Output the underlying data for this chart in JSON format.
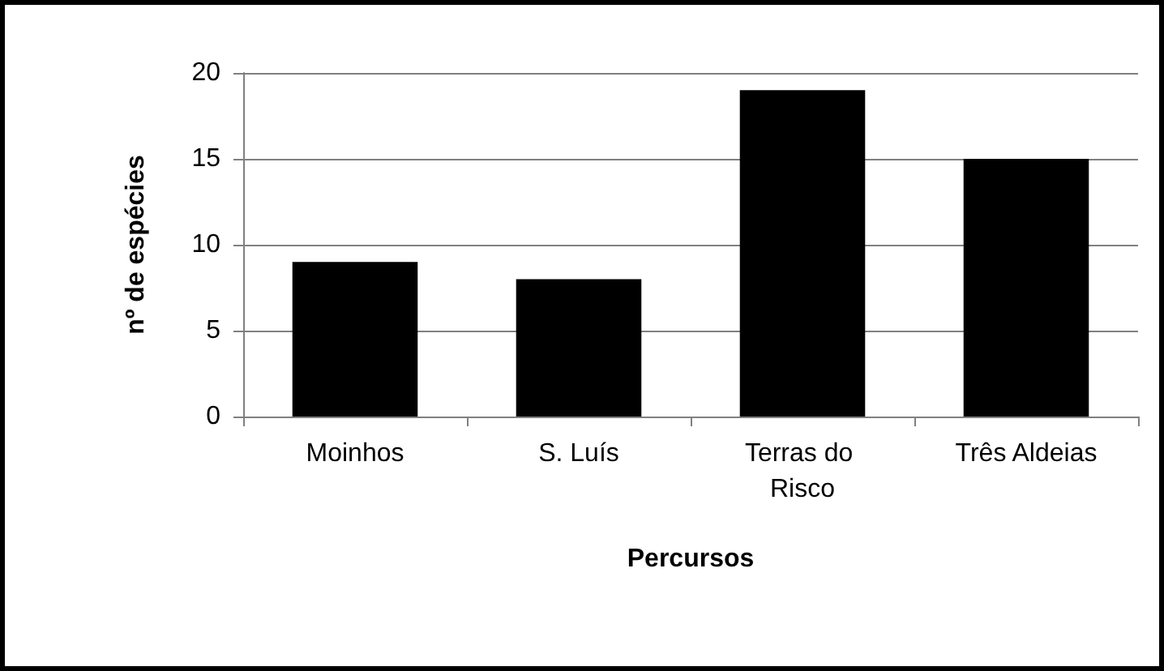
{
  "chart_data": {
    "type": "bar",
    "xlabel": "Percursos",
    "ylabel": "nº de espécies",
    "categories": [
      "Moinhos",
      "S. Luís",
      "Terras do Risco",
      "Três Aldeias"
    ],
    "values": [
      9,
      8,
      19,
      15
    ],
    "color": "#000000",
    "ylim": [
      0,
      20
    ],
    "yticks": [
      0,
      5,
      10,
      15,
      20
    ],
    "grid": "y"
  }
}
